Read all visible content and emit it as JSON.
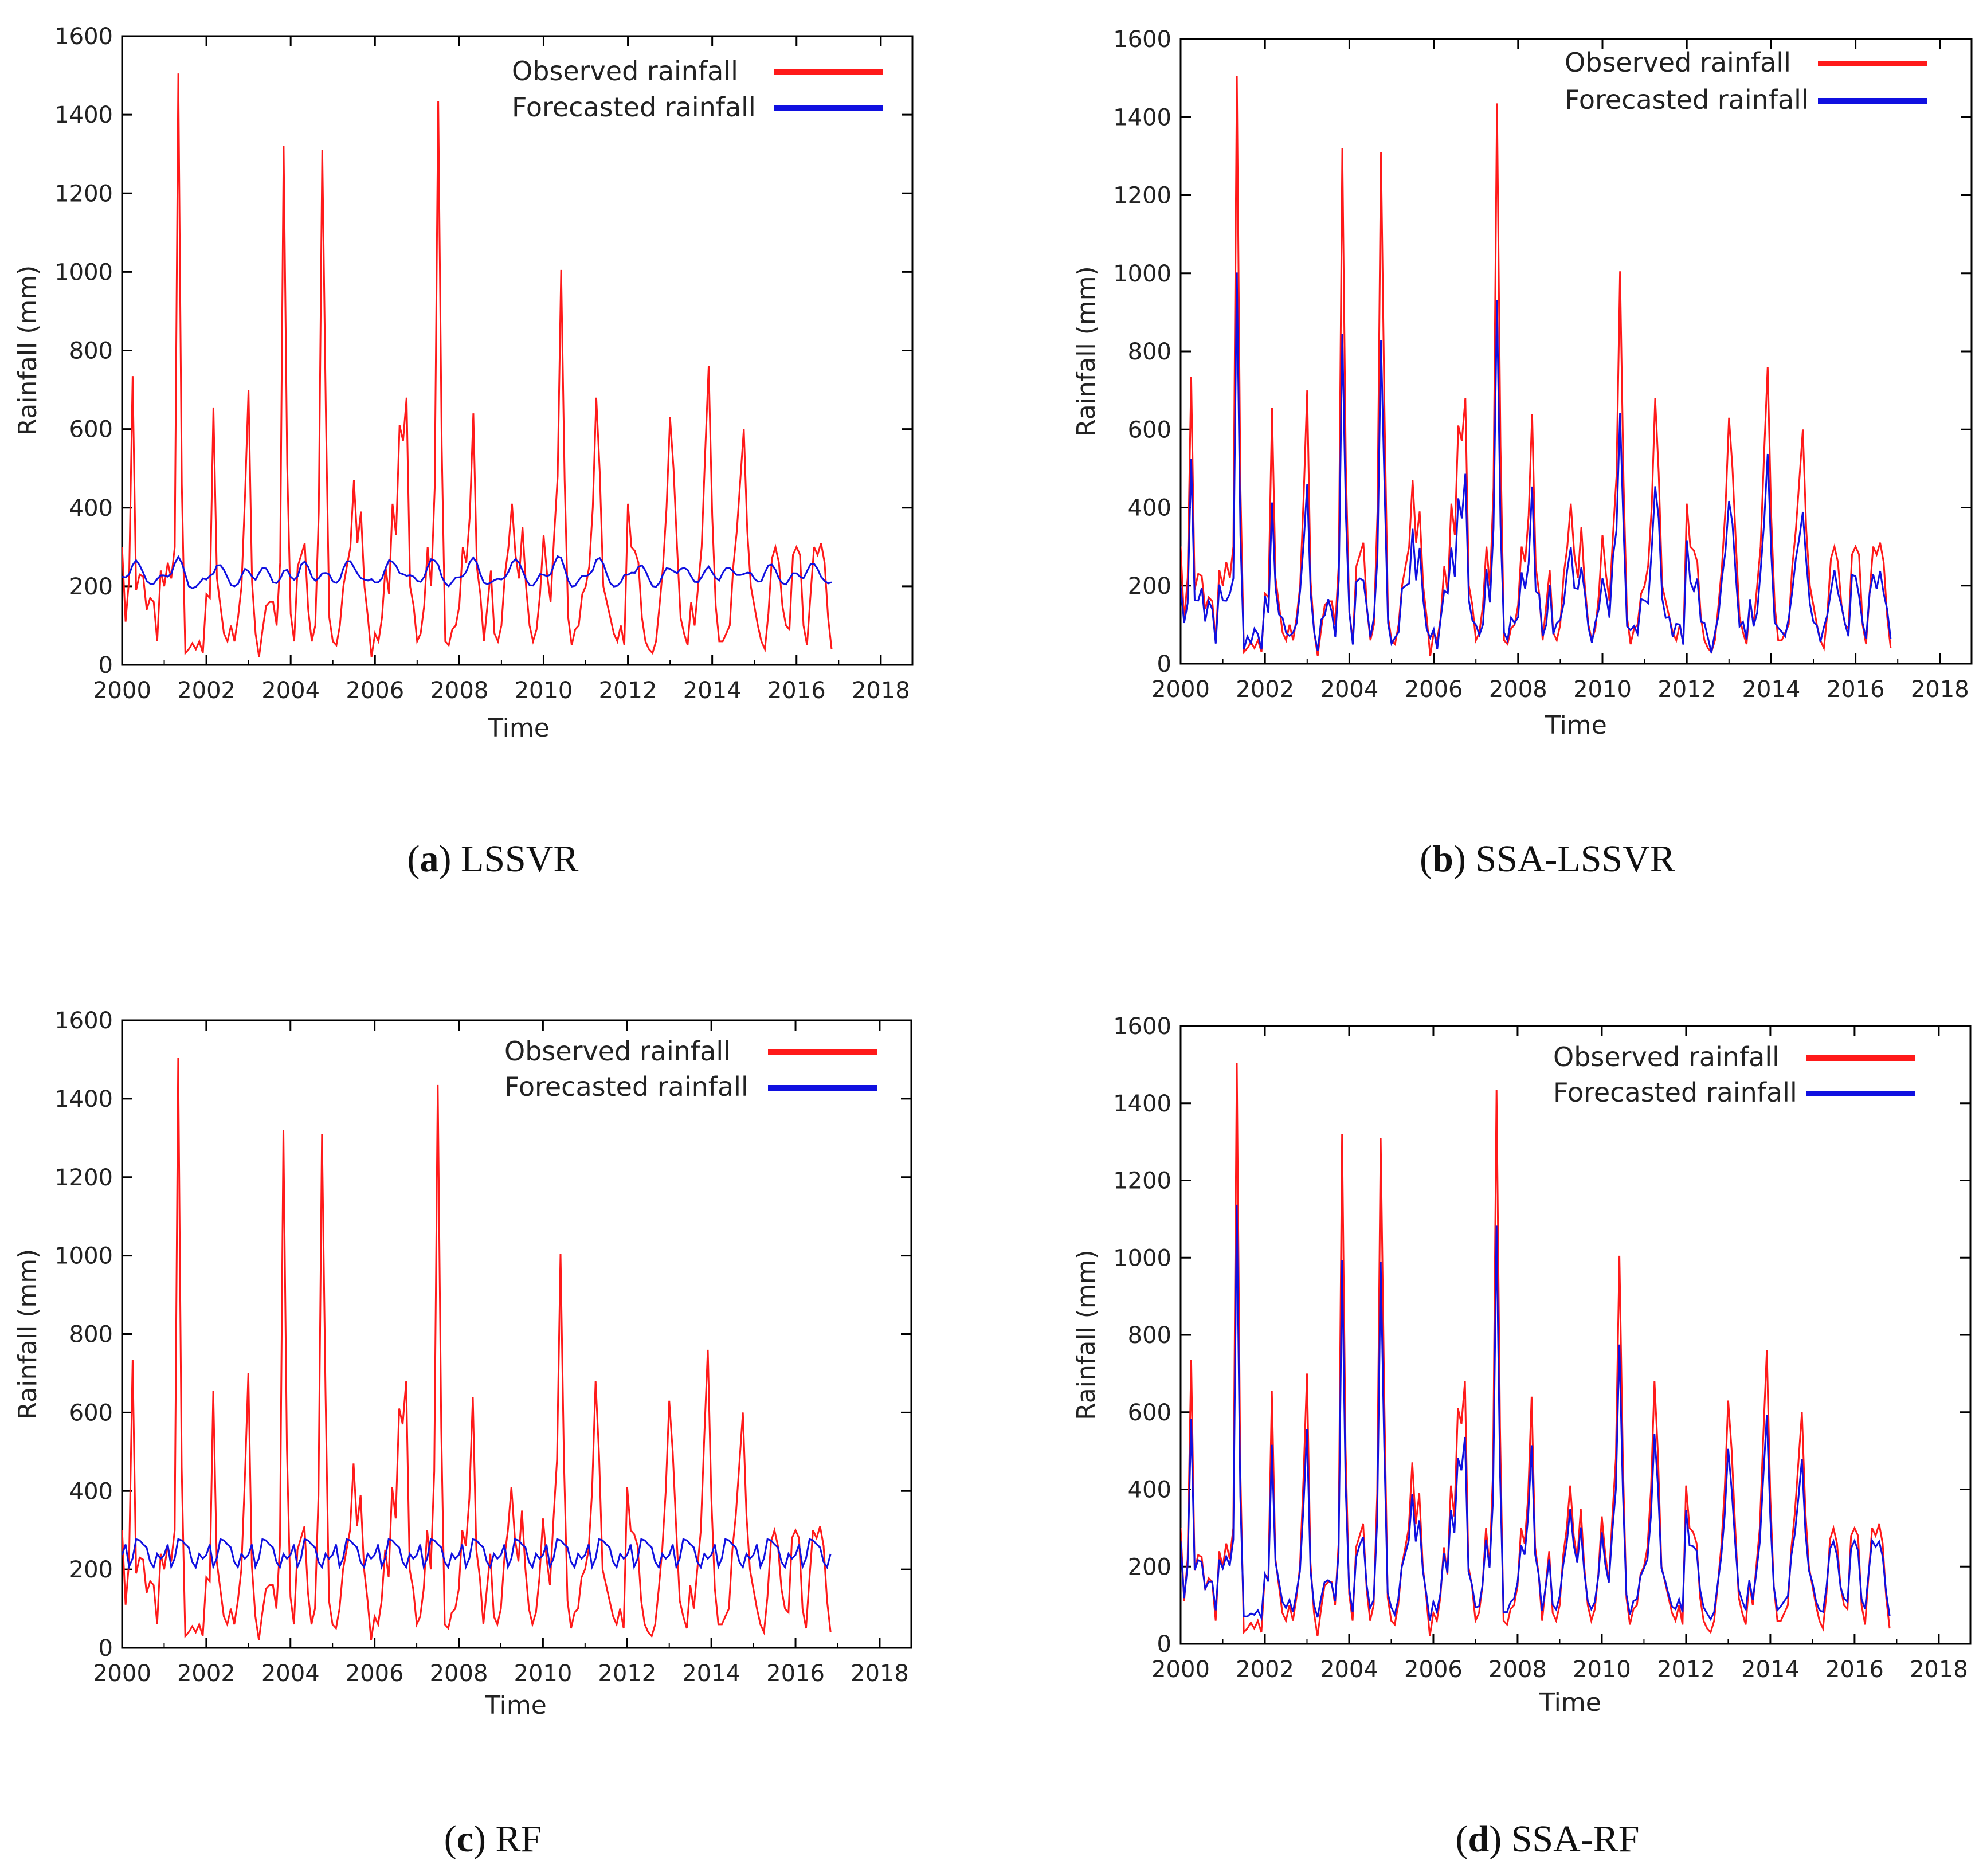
{
  "colors": {
    "observed": "#ff1a1a",
    "forecasted": "#1010e0"
  },
  "panels": [
    {
      "caption_letter": "a",
      "caption_name": "LSSVR"
    },
    {
      "caption_letter": "b",
      "caption_name": "SSA-LSSVR"
    },
    {
      "caption_letter": "c",
      "caption_name": "RF"
    },
    {
      "caption_letter": "d",
      "caption_name": "SSA-RF"
    }
  ],
  "chart_data": [
    {
      "type": "line",
      "title": "",
      "xlabel": "Time",
      "ylabel": "Rainfall (mm)",
      "xlim": [
        2000,
        2018.75
      ],
      "ylim": [
        0,
        1600
      ],
      "xticks": [
        "2000",
        "2002",
        "2004",
        "2006",
        "2008",
        "2010",
        "2012",
        "2014",
        "2016",
        "2018"
      ],
      "yticks": [
        "0",
        "200",
        "400",
        "600",
        "800",
        "1000",
        "1200",
        "1400",
        "1600"
      ],
      "legend": {
        "placement": "top-right"
      },
      "series": [
        {
          "name": "Observed rainfall",
          "color": "#ff1a1a",
          "key": "observed"
        },
        {
          "name": "Forecasted rainfall",
          "color": "#1010e0",
          "key": "forecasted"
        }
      ],
      "model": "LSSVR"
    },
    {
      "type": "line",
      "title": "",
      "xlabel": "Time",
      "ylabel": "Rainfall (mm)",
      "xlim": [
        2000,
        2018.75
      ],
      "ylim": [
        0,
        1600
      ],
      "xticks": [
        "2000",
        "2002",
        "2004",
        "2006",
        "2008",
        "2010",
        "2012",
        "2014",
        "2016",
        "2018"
      ],
      "yticks": [
        "0",
        "200",
        "400",
        "600",
        "800",
        "1000",
        "1200",
        "1400",
        "1600"
      ],
      "legend": {
        "placement": "top-right"
      },
      "series": [
        {
          "name": "Observed rainfall",
          "color": "#ff1a1a",
          "key": "observed"
        },
        {
          "name": "Forecasted rainfall",
          "color": "#1010e0",
          "key": "forecasted"
        }
      ],
      "model": "SSA-LSSVR"
    },
    {
      "type": "line",
      "title": "",
      "xlabel": "Time",
      "ylabel": "Rainfall (mm)",
      "xlim": [
        2000,
        2018.75
      ],
      "ylim": [
        0,
        1600
      ],
      "xticks": [
        "2000",
        "2002",
        "2004",
        "2006",
        "2008",
        "2010",
        "2012",
        "2014",
        "2016",
        "2018"
      ],
      "yticks": [
        "0",
        "200",
        "400",
        "600",
        "800",
        "1000",
        "1200",
        "1400",
        "1600"
      ],
      "legend": {
        "placement": "top-right"
      },
      "series": [
        {
          "name": "Observed rainfall",
          "color": "#ff1a1a",
          "key": "observed"
        },
        {
          "name": "Forecasted rainfall",
          "color": "#1010e0",
          "key": "forecasted"
        }
      ],
      "model": "RF"
    },
    {
      "type": "line",
      "title": "",
      "xlabel": "Time",
      "ylabel": "Rainfall (mm)",
      "xlim": [
        2000,
        2018.75
      ],
      "ylim": [
        0,
        1600
      ],
      "xticks": [
        "2000",
        "2002",
        "2004",
        "2006",
        "2008",
        "2010",
        "2012",
        "2014",
        "2016",
        "2018"
      ],
      "yticks": [
        "0",
        "200",
        "400",
        "600",
        "800",
        "1000",
        "1200",
        "1400",
        "1600"
      ],
      "legend": {
        "placement": "top-right"
      },
      "series": [
        {
          "name": "Observed rainfall",
          "color": "#ff1a1a",
          "key": "observed"
        },
        {
          "name": "Forecasted rainfall",
          "color": "#1010e0",
          "key": "forecasted"
        }
      ],
      "model": "SSA-RF"
    }
  ],
  "observed_rainfall": [
    300,
    110,
    220,
    735,
    190,
    230,
    225,
    140,
    170,
    160,
    60,
    240,
    200,
    260,
    220,
    300,
    1505,
    460,
    30,
    40,
    55,
    40,
    60,
    30,
    180,
    170,
    655,
    220,
    150,
    80,
    60,
    100,
    60,
    120,
    200,
    430,
    700,
    210,
    80,
    20,
    90,
    150,
    160,
    160,
    100,
    260,
    1320,
    510,
    130,
    60,
    250,
    280,
    310,
    140,
    60,
    100,
    390,
    1310,
    650,
    120,
    60,
    50,
    100,
    200,
    250,
    300,
    470,
    310,
    390,
    200,
    120,
    20,
    80,
    60,
    120,
    250,
    180,
    410,
    330,
    610,
    570,
    680,
    200,
    150,
    60,
    80,
    150,
    300,
    200,
    450,
    1435,
    560,
    60,
    50,
    90,
    100,
    150,
    300,
    260,
    380,
    640,
    250,
    180,
    60,
    150,
    240,
    80,
    60,
    100,
    230,
    300,
    410,
    280,
    220,
    350,
    200,
    100,
    60,
    90,
    180,
    330,
    230,
    160,
    330,
    480,
    1005,
    470,
    120,
    50,
    90,
    100,
    180,
    200,
    250,
    400,
    680,
    490,
    200,
    160,
    120,
    80,
    60,
    100,
    50,
    410,
    300,
    290,
    260,
    120,
    60,
    40,
    30,
    60,
    150,
    250,
    400,
    630,
    500,
    300,
    120,
    80,
    50,
    160,
    100,
    200,
    300,
    540,
    760,
    380,
    150,
    60,
    60,
    80,
    100,
    250,
    340,
    470,
    600,
    340,
    200,
    150,
    100,
    60,
    40,
    130,
    270,
    300,
    260,
    150,
    100,
    90,
    280,
    300,
    280,
    100,
    50,
    180,
    300,
    280,
    310,
    260,
    120,
    40
  ]
}
